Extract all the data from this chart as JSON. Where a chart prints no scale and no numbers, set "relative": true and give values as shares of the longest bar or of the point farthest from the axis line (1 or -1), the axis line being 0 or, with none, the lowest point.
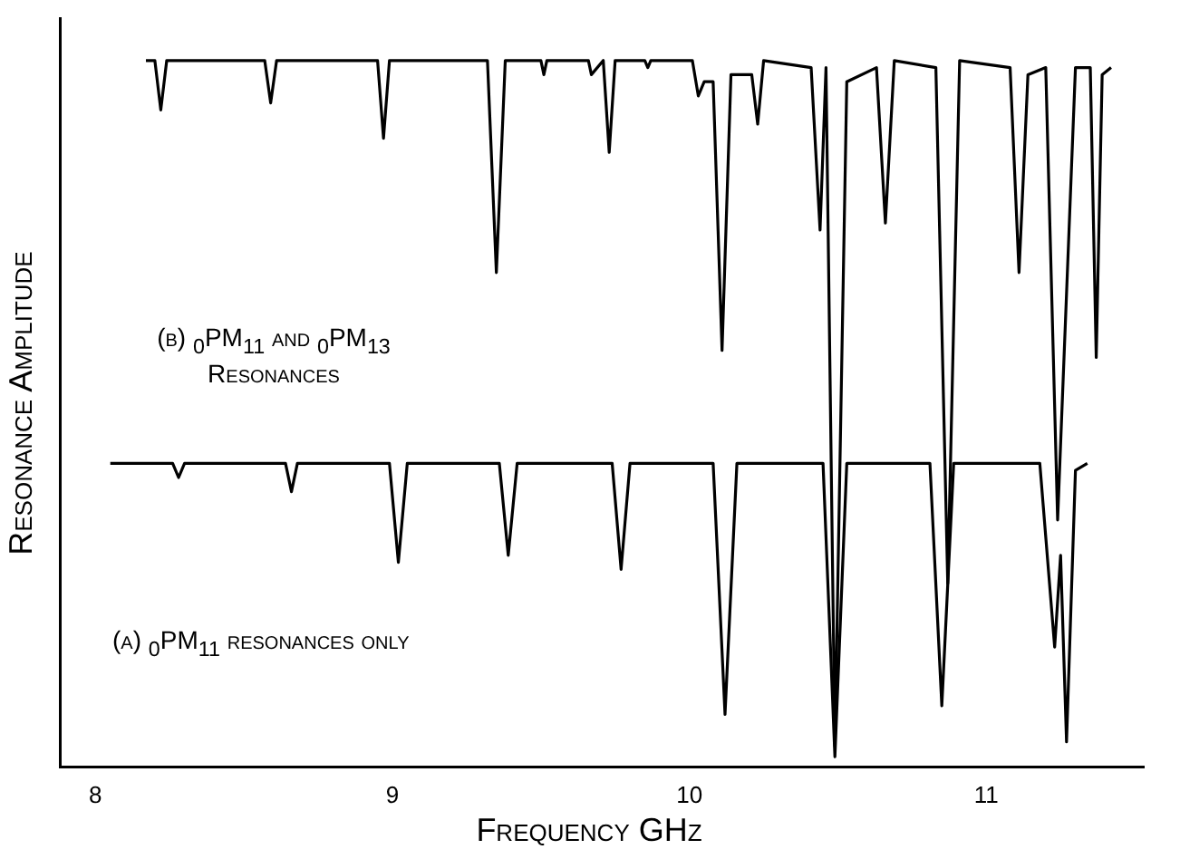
{
  "chart_data": {
    "type": "line",
    "relative": true,
    "xlabel": "Frequency GHz",
    "ylabel": "Resonance Amplitude",
    "xlim": [
      7.88,
      11.53
    ],
    "xticks": [
      8,
      9,
      10,
      11
    ],
    "grid": false,
    "legend": false,
    "marker": "none",
    "line_style": "solid",
    "tick_labels": "x",
    "annotations": [
      "(b) $_{0}$PM$_{11}$ and $_{0}$PM$_{13}$ Resonances",
      "(a) $_{0}$PM$_{11}$ resonances only"
    ],
    "series": [
      {
        "color": "#000000",
        "x": [
          8.17,
          8.2,
          8.22,
          8.24,
          8.57,
          8.59,
          8.61,
          8.95,
          8.97,
          8.99,
          9.32,
          9.35,
          9.38,
          9.5,
          9.51,
          9.52,
          9.66,
          9.67,
          9.71,
          9.73,
          9.75,
          9.85,
          9.86,
          9.87,
          10.01,
          10.03,
          10.05,
          10.08,
          10.11,
          10.14,
          10.21,
          10.23,
          10.25,
          10.41,
          10.44,
          10.46,
          10.49,
          10.53,
          10.63,
          10.66,
          10.69,
          10.83,
          10.87,
          10.91,
          11.08,
          11.11,
          11.14,
          11.2,
          11.24,
          11.3,
          11.35,
          11.37,
          11.39,
          11.42
        ],
        "values": [
          1,
          1,
          0.93,
          1,
          1,
          0.94,
          1,
          1,
          0.89,
          1,
          1,
          0.7,
          1,
          1,
          0.98,
          1,
          1,
          0.98,
          1,
          0.87,
          1,
          1,
          0.99,
          1,
          1,
          0.95,
          0.97,
          0.97,
          0.59,
          0.98,
          0.98,
          0.91,
          1,
          0.99,
          0.76,
          0.99,
          0.03,
          0.97,
          0.99,
          0.77,
          1,
          0.99,
          0.26,
          1,
          0.99,
          0.7,
          0.98,
          0.99,
          0.35,
          0.99,
          0.99,
          0.58,
          0.98,
          0.99
        ]
      },
      {
        "color": "#000000",
        "x": [
          8.05,
          8.26,
          8.28,
          8.3,
          8.64,
          8.66,
          8.68,
          8.99,
          9.02,
          9.05,
          9.36,
          9.39,
          9.42,
          9.74,
          9.77,
          9.8,
          10.08,
          10.12,
          10.16,
          10.45,
          10.49,
          10.53,
          10.81,
          10.85,
          10.89,
          11.18,
          11.23,
          11.25,
          11.27,
          11.3,
          11.34
        ],
        "values": [
          0.43,
          0.43,
          0.41,
          0.43,
          0.43,
          0.39,
          0.43,
          0.43,
          0.29,
          0.43,
          0.43,
          0.3,
          0.43,
          0.43,
          0.28,
          0.43,
          0.43,
          0.075,
          0.43,
          0.43,
          0.015,
          0.43,
          0.43,
          0.087,
          0.43,
          0.43,
          0.17,
          0.3,
          0.036,
          0.42,
          0.43
        ]
      }
    ]
  }
}
